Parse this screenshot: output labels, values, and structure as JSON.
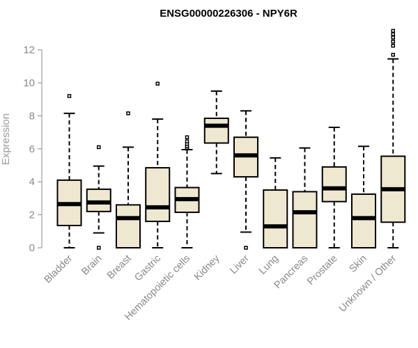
{
  "chart_data": {
    "type": "boxplot",
    "title": "ENSG00000226306 - NPY6R",
    "xlabel": "",
    "ylabel": "Expression",
    "ylim": [
      0,
      13
    ],
    "yticks": [
      0,
      2,
      4,
      6,
      8,
      10,
      12
    ],
    "grid": false,
    "legend": "none",
    "colors": {
      "box_fill": "#efe8d0",
      "stroke": "#000000",
      "axis": "#888888"
    },
    "categories": [
      "Bladder",
      "Brain",
      "Breast",
      "Gastric",
      "Hematopoietic cells",
      "Kidney",
      "Liver",
      "Lung",
      "Pancreas",
      "Prostate",
      "Skin",
      "Unknown / Other"
    ],
    "boxes": [
      {
        "category": "Bladder",
        "min": 0.0,
        "q1": 1.35,
        "median": 2.65,
        "q3": 4.1,
        "max": 8.15,
        "outliers": [
          9.2
        ]
      },
      {
        "category": "Brain",
        "min": 0.9,
        "q1": 2.2,
        "median": 2.75,
        "q3": 3.55,
        "max": 4.95,
        "outliers": [
          6.1,
          0.0
        ]
      },
      {
        "category": "Breast",
        "min": 0.0,
        "q1": 0.0,
        "median": 1.8,
        "q3": 2.6,
        "max": 6.1,
        "outliers": [
          8.15
        ]
      },
      {
        "category": "Gastric",
        "min": 0.0,
        "q1": 1.6,
        "median": 2.45,
        "q3": 4.85,
        "max": 7.8,
        "outliers": [
          9.95
        ]
      },
      {
        "category": "Hematopoietic cells",
        "min": 0.0,
        "q1": 2.15,
        "median": 2.95,
        "q3": 3.65,
        "max": 5.95,
        "outliers": [
          6.05,
          6.15,
          6.3,
          6.45,
          6.7
        ]
      },
      {
        "category": "Kidney",
        "min": 4.5,
        "q1": 6.35,
        "median": 7.4,
        "q3": 7.85,
        "max": 9.5,
        "outliers": []
      },
      {
        "category": "Liver",
        "min": 0.95,
        "q1": 4.3,
        "median": 5.6,
        "q3": 6.7,
        "max": 8.3,
        "outliers": [
          0.0
        ]
      },
      {
        "category": "Lung",
        "min": 0.0,
        "q1": 0.0,
        "median": 1.3,
        "q3": 3.5,
        "max": 5.45,
        "outliers": []
      },
      {
        "category": "Pancreas",
        "min": 0.0,
        "q1": 0.0,
        "median": 2.15,
        "q3": 3.4,
        "max": 6.05,
        "outliers": []
      },
      {
        "category": "Prostate",
        "min": 0.0,
        "q1": 2.8,
        "median": 3.6,
        "q3": 4.9,
        "max": 7.3,
        "outliers": []
      },
      {
        "category": "Skin",
        "min": 0.0,
        "q1": 0.0,
        "median": 1.8,
        "q3": 3.25,
        "max": 6.15,
        "outliers": []
      },
      {
        "category": "Unknown / Other",
        "min": 0.0,
        "q1": 1.55,
        "median": 3.55,
        "q3": 5.55,
        "max": 11.45,
        "outliers": [
          11.7,
          12.25,
          12.5,
          12.75,
          12.95,
          13.15
        ]
      }
    ]
  }
}
